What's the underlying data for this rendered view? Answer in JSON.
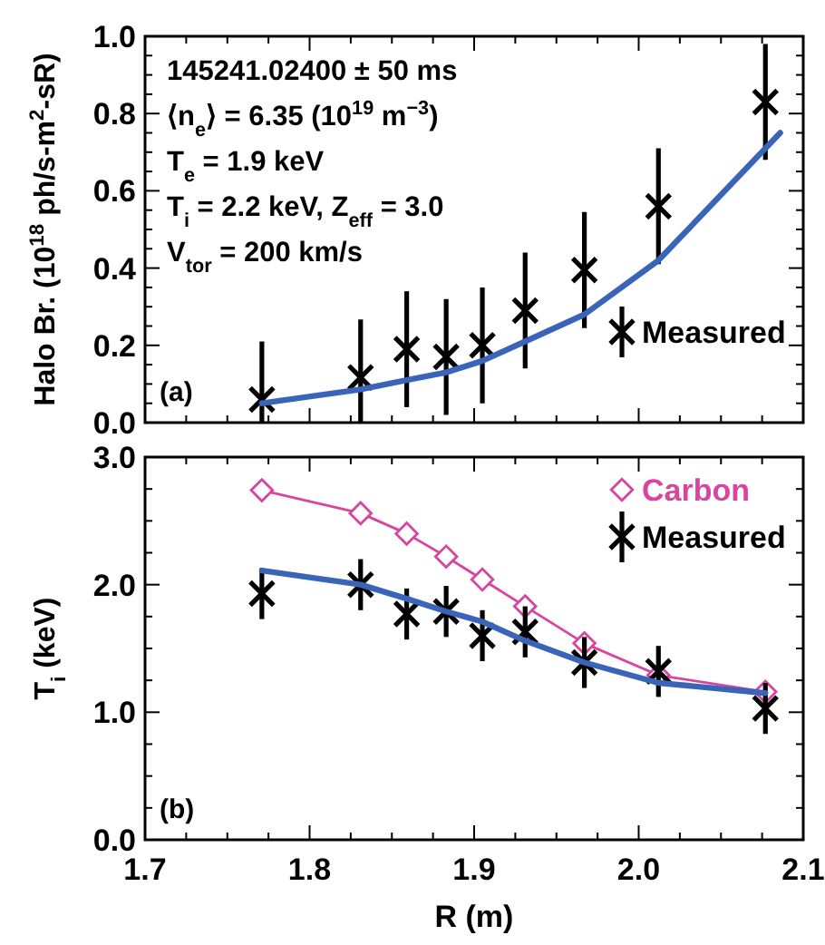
{
  "chart_data": [
    {
      "type": "line",
      "ylabel": "Halo Br. (10$^{18}$ ph/s-m$^{2}$-sR)",
      "annotations": [
        "145241.02400 ± 50 ms",
        "⟨n$_{e}$⟩ = 6.35 (10$^{19}$ m$^{−3}$)",
        "T$_{e}$ = 1.9 keV",
        "T$_{i}$ = 2.2 keV, Z$_{eff}$ = 3.0",
        "V$_{tor}$ = 200 km/s",
        "(a)"
      ],
      "xlim": [
        1.7,
        2.1
      ],
      "xticks": [
        {
          "value": 1.7,
          "label": null
        },
        {
          "value": 1.8,
          "label": null
        },
        {
          "value": 1.9,
          "label": null
        },
        {
          "value": 2.0,
          "label": null
        },
        {
          "value": 2.1,
          "label": null
        }
      ],
      "ylim": [
        0,
        1
      ],
      "yticks": [
        {
          "value": 0,
          "label": "0.0"
        },
        0.2,
        0.4,
        0.6,
        0.8,
        {
          "value": 1,
          "label": "1.0"
        }
      ],
      "tick_labels": "y",
      "legend": "bottom right",
      "grid": false,
      "series": [
        {
          "name": "Measured",
          "type": "scatter",
          "marker": "cross",
          "color": "#000000",
          "x": [
            1.771,
            1.831,
            1.859,
            1.883,
            1.905,
            1.931,
            1.967,
            2.012,
            2.077
          ],
          "values": [
            0.06,
            0.117,
            0.19,
            0.17,
            0.2,
            0.29,
            0.395,
            0.56,
            0.83
          ],
          "errors": [
            [
              0,
              0.21
            ],
            [
              0,
              0.267
            ],
            0.15,
            0.15,
            0.15,
            0.15,
            0.15,
            0.15,
            0.15
          ]
        },
        {
          "marker": "none",
          "color": "#3a64b8",
          "x": [
            1.771,
            1.831,
            1.859,
            1.883,
            1.905,
            1.931,
            1.967,
            2.012,
            2.086
          ],
          "values": [
            0.05,
            0.086,
            0.11,
            0.13,
            0.16,
            0.21,
            0.28,
            0.42,
            0.75
          ]
        }
      ]
    },
    {
      "type": "line",
      "xlabel": "R (m)",
      "ylabel": "T$_{i}$ (keV)",
      "annotations": [
        "(b)"
      ],
      "xlim": [
        1.7,
        2.1
      ],
      "xticks": [
        {
          "value": 1.7,
          "label": "1.7"
        },
        {
          "value": 1.8,
          "label": "1.8"
        },
        {
          "value": 1.9,
          "label": "1.9"
        },
        {
          "value": 2.0,
          "label": "2.0"
        },
        {
          "value": 2.1,
          "label": "2.1"
        }
      ],
      "ylim": [
        0,
        3
      ],
      "yticks": [
        {
          "value": 0,
          "label": "0.0"
        },
        {
          "value": 1,
          "label": "1.0"
        },
        {
          "value": 2,
          "label": "2.0"
        },
        {
          "value": 3,
          "label": "3.0"
        }
      ],
      "legend": "top right",
      "grid": false,
      "series": [
        {
          "name": "Carbon",
          "marker": "diamond",
          "color": "#d9449f",
          "x": [
            1.771,
            1.831,
            1.859,
            1.883,
            1.905,
            1.931,
            1.967,
            2.012,
            2.077
          ],
          "values": [
            2.74,
            2.56,
            2.4,
            2.22,
            2.04,
            1.83,
            1.54,
            1.29,
            1.16
          ]
        },
        {
          "name": "Measured",
          "type": "scatter",
          "marker": "cross",
          "color": "#000000",
          "x": [
            1.771,
            1.831,
            1.859,
            1.883,
            1.905,
            1.931,
            1.967,
            2.012,
            2.077
          ],
          "values": [
            1.93,
            2.0,
            1.77,
            1.79,
            1.6,
            1.63,
            1.39,
            1.32,
            1.03
          ],
          "errors": [
            0.2,
            0.2,
            0.2,
            0.2,
            0.2,
            0.2,
            0.2,
            0.2,
            0.2
          ]
        },
        {
          "marker": "none",
          "color": "#3a64b8",
          "x": [
            1.771,
            1.831,
            1.859,
            1.883,
            1.905,
            1.931,
            1.967,
            2.012,
            2.077
          ],
          "values": [
            2.11,
            2.0,
            1.89,
            1.79,
            1.71,
            1.56,
            1.39,
            1.23,
            1.15
          ]
        }
      ]
    }
  ]
}
